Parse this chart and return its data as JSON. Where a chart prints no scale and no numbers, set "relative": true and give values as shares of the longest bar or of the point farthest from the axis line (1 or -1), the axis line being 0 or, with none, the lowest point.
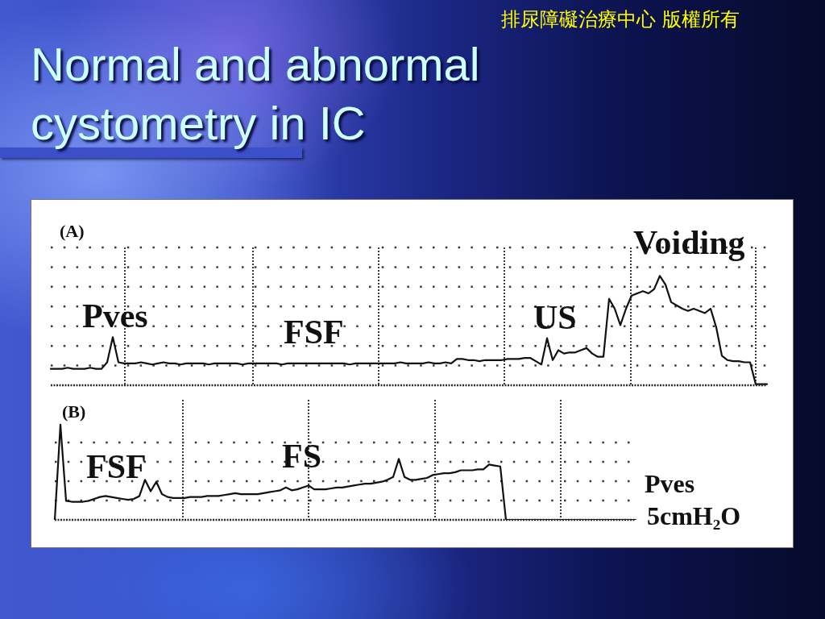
{
  "chart_data": [
    {
      "type": "line",
      "title": "Normal and abnormal cystometry in IC",
      "subtitle": "(A)",
      "annotations": [
        "排尿障礙治療中心 版權所有",
        "Pves",
        "FSF",
        "US",
        "Voiding"
      ],
      "relative": true,
      "grid": true,
      "color": "#111111",
      "categories": [
        null,
        null,
        null,
        null,
        null,
        null,
        null,
        null,
        null,
        null,
        null,
        null,
        null,
        null,
        null,
        null,
        null,
        null,
        null,
        null,
        null,
        null,
        null,
        null,
        null,
        null,
        null,
        null,
        null,
        null,
        null,
        null,
        null,
        null,
        null,
        null,
        null,
        null,
        null,
        null,
        null,
        null,
        null,
        null,
        null,
        null,
        null,
        null,
        null,
        null,
        null,
        null,
        null,
        null,
        null,
        null,
        null,
        null,
        null,
        null,
        null,
        null,
        null,
        null,
        null,
        null,
        null,
        null,
        null,
        null,
        null,
        null,
        null,
        null,
        null,
        null,
        null,
        null,
        null,
        null,
        null,
        null,
        null,
        null,
        null,
        null,
        null,
        null,
        null,
        null,
        null,
        null,
        null,
        null,
        null,
        null,
        null,
        null,
        null,
        null,
        null,
        null,
        null,
        null,
        null,
        null,
        null,
        null,
        null,
        null,
        null,
        null,
        null,
        null,
        null,
        null,
        null,
        null,
        null,
        null,
        null,
        null,
        null,
        null,
        null,
        null,
        null,
        null
      ],
      "values": [
        0.15,
        0.15,
        0.15,
        0.16,
        0.15,
        0.15,
        0.15,
        0.16,
        0.15,
        0.15,
        0.21,
        0.44,
        0.21,
        0.2,
        0.2,
        0.2,
        0.21,
        0.2,
        0.19,
        0.2,
        0.21,
        0.2,
        0.2,
        0.19,
        0.2,
        0.2,
        0.2,
        0.2,
        0.19,
        0.2,
        0.2,
        0.2,
        0.2,
        0.2,
        0.19,
        0.2,
        0.2,
        0.2,
        0.2,
        0.2,
        0.2,
        0.19,
        0.2,
        0.2,
        0.2,
        0.2,
        0.2,
        0.2,
        0.2,
        0.2,
        0.2,
        0.2,
        0.2,
        0.19,
        0.2,
        0.2,
        0.2,
        0.2,
        0.2,
        0.2,
        0.2,
        0.2,
        0.21,
        0.2,
        0.2,
        0.2,
        0.2,
        0.21,
        0.2,
        0.2,
        0.21,
        0.2,
        0.24,
        0.24,
        0.23,
        0.23,
        0.22,
        0.23,
        0.23,
        0.23,
        0.23,
        0.24,
        0.24,
        0.24,
        0.25,
        0.25,
        0.22,
        0.19,
        0.43,
        0.23,
        0.32,
        0.29,
        0.3,
        0.3,
        0.32,
        0.34,
        0.29,
        0.26,
        0.26,
        0.79,
        0.7,
        0.55,
        0.7,
        0.82,
        0.84,
        0.86,
        0.84,
        0.88,
        1,
        0.92,
        0.76,
        0.73,
        0.7,
        0.68,
        0.7,
        0.68,
        0.66,
        0.7,
        0.53,
        0.27,
        0.23,
        0.22,
        0.22,
        0.21,
        0.21,
        0.01,
        0.01,
        0.01
      ]
    },
    {
      "type": "line",
      "title": "(B)",
      "annotations": [
        "FSF",
        "FS",
        "Pves",
        "5cmH₂O"
      ],
      "relative": true,
      "grid": true,
      "color": "#111111",
      "categories": [
        null,
        null,
        null,
        null,
        null,
        null,
        null,
        null,
        null,
        null,
        null,
        null,
        null,
        null,
        null,
        null,
        null,
        null,
        null,
        null,
        null,
        null,
        null,
        null,
        null,
        null,
        null,
        null,
        null,
        null,
        null,
        null,
        null,
        null,
        null,
        null,
        null,
        null,
        null,
        null,
        null,
        null,
        null,
        null,
        null,
        null,
        null,
        null,
        null,
        null,
        null,
        null,
        null,
        null,
        null,
        null,
        null,
        null,
        null,
        null,
        null,
        null,
        null,
        null,
        null,
        null,
        null,
        null,
        null,
        null,
        null,
        null,
        null,
        null,
        null,
        null,
        null,
        null,
        null,
        null,
        null,
        null,
        null,
        null,
        null,
        null,
        null,
        null,
        null,
        null,
        null,
        null,
        null,
        null,
        null,
        null,
        null,
        null,
        null,
        null,
        null,
        null,
        null,
        null
      ],
      "values": [
        0,
        1,
        0.2,
        0.19,
        0.19,
        0.19,
        0.2,
        0.22,
        0.24,
        0.25,
        0.24,
        0.23,
        0.22,
        0.21,
        0.22,
        0.25,
        0.42,
        0.3,
        0.4,
        0.27,
        0.24,
        0.23,
        0.23,
        0.23,
        0.24,
        0.24,
        0.24,
        0.25,
        0.25,
        0.25,
        0.26,
        0.27,
        0.28,
        0.27,
        0.27,
        0.27,
        0.27,
        0.28,
        0.29,
        0.3,
        0.31,
        0.34,
        0.31,
        0.32,
        0.34,
        0.36,
        0.32,
        0.32,
        0.32,
        0.33,
        0.34,
        0.34,
        0.35,
        0.36,
        0.37,
        0.38,
        0.38,
        0.39,
        0.4,
        0.42,
        0.45,
        0.64,
        0.45,
        0.42,
        0.42,
        0.43,
        0.44,
        0.47,
        0.48,
        0.49,
        0.49,
        0.5,
        0.52,
        0.52,
        0.52,
        0.53,
        0.53,
        0.58,
        0.57,
        0.56,
        0,
        0,
        0,
        0,
        0,
        0,
        0,
        0,
        0,
        0,
        0,
        0,
        0,
        0,
        0,
        0,
        0,
        0,
        0,
        0,
        0,
        0,
        0,
        0
      ]
    }
  ]
}
